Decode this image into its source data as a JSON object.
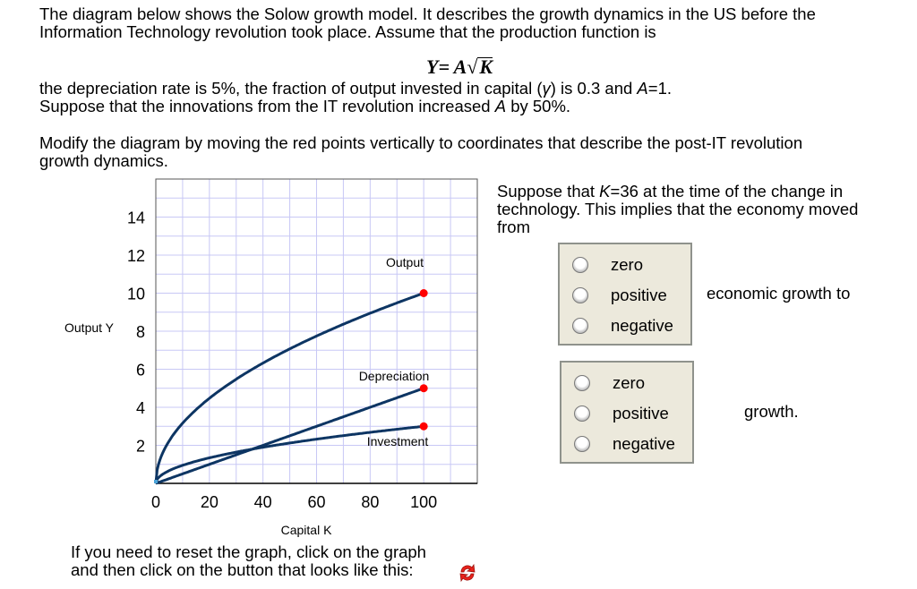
{
  "intro": {
    "line1": "The diagram below shows the Solow growth model.  It describes the growth dynamics in the US before the",
    "line2": "Information Technology revolution took place. Assume that the production function is",
    "formula": {
      "lhs": "Y= A",
      "radicand": "K"
    },
    "line3": {
      "a": "the depreciation rate is 5%, the fraction of output invested in capital (",
      "gamma": "γ",
      "b": ") is 0.3 and ",
      "A": "A",
      "c": "=1."
    },
    "line4": {
      "a": "Suppose that the innovations from the IT revolution increased ",
      "A": "A",
      "b": " by 50%."
    },
    "line5": "Modify the diagram by moving the red points vertically to coordinates that describe the post-IT revolution",
    "line6": "growth dynamics."
  },
  "question": {
    "line1": {
      "a": "Suppose that ",
      "K": "K",
      "b": "=36 at the time of the change in"
    },
    "line2": "technology. This implies that the economy moved",
    "line3": "from",
    "group1": {
      "options": [
        "zero",
        "positive",
        "negative"
      ],
      "suffix": "economic growth to"
    },
    "group2": {
      "options": [
        "zero",
        "positive",
        "negative"
      ],
      "suffix": "growth."
    }
  },
  "reset": {
    "line1": "If you need to reset the graph, click on the graph",
    "line2": "and then click on the button that looks like this:",
    "icon": "refresh-icon"
  },
  "chart_data": {
    "type": "line",
    "xlabel": "Capital K",
    "ylabel": "Output Y",
    "xlim": [
      0,
      120
    ],
    "ylim": [
      0,
      16
    ],
    "xticks": [
      0,
      20,
      40,
      60,
      80,
      100
    ],
    "yticks": [
      2,
      4,
      6,
      8,
      10,
      12,
      14
    ],
    "grid": true,
    "series": [
      {
        "name": "Output",
        "formula": "sqrt(K)",
        "endpoint": [
          100,
          10
        ]
      },
      {
        "name": "Depreciation",
        "formula": "0.05*K",
        "endpoint": [
          100,
          5
        ]
      },
      {
        "name": "Investment",
        "formula": "0.3*sqrt(K)",
        "endpoint": [
          100,
          3
        ]
      }
    ],
    "colors": {
      "curve": "#0d3563",
      "point": "#ff0000",
      "grid": "#c8c8f5"
    }
  }
}
